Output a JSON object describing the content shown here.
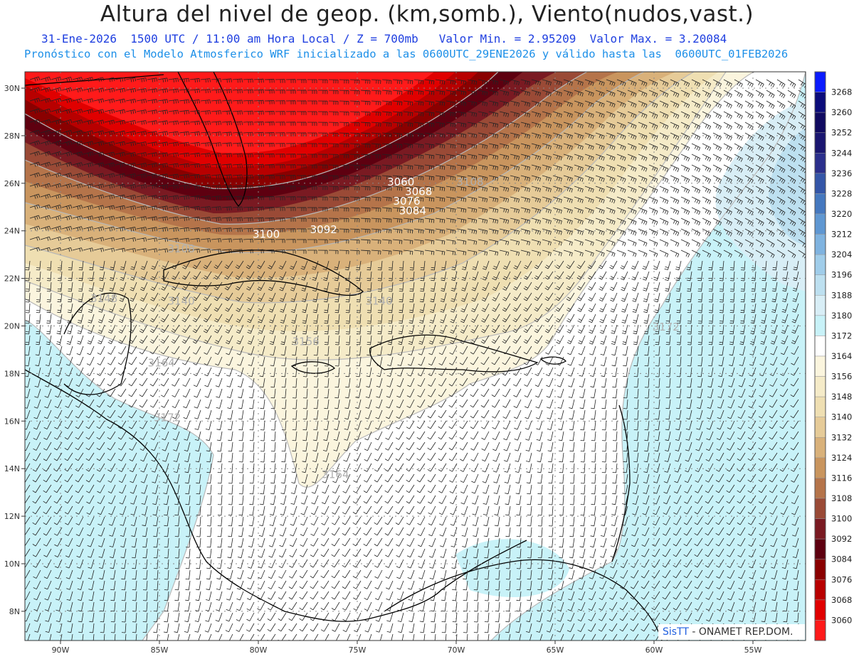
{
  "title": "Altura del nivel de geop. (km,somb.), Viento(nudos,vast.)",
  "subtitle_1": "31-Ene-2026  1500 UTC / 11:00 am Hora Local / Z = 700mb   Valor Min. = 2.95209  Valor Max. = 3.20084",
  "subtitle_2": "Pronóstico con el Modelo Atmosferico WRF inicializado a las 0600UTC_29ENE2026 y válido hasta las  0600UTC_01FEB2026",
  "credit": {
    "brand": "SisTT",
    "rest": " - ONAMET REP.DOM."
  },
  "axes": {
    "lon_ticks": [
      "90W",
      "85W",
      "80W",
      "75W",
      "70W",
      "65W",
      "60W",
      "55W"
    ],
    "lat_ticks": [
      "30N",
      "28N",
      "26N",
      "24N",
      "22N",
      "20N",
      "18N",
      "16N",
      "14N",
      "12N",
      "10N",
      "8N"
    ]
  },
  "colorbar": {
    "levels": [
      {
        "value": "3268",
        "color": "#0a1bff"
      },
      {
        "value": "3260",
        "color": "#0b0c7a"
      },
      {
        "value": "3252",
        "color": "#100a60"
      },
      {
        "value": "3244",
        "color": "#1a1670"
      },
      {
        "value": "3236",
        "color": "#2b2f8c"
      },
      {
        "value": "3228",
        "color": "#3456a8"
      },
      {
        "value": "3220",
        "color": "#4578bf"
      },
      {
        "value": "3212",
        "color": "#5f97d2"
      },
      {
        "value": "3204",
        "color": "#7fb3e0"
      },
      {
        "value": "3196",
        "color": "#a0cdea"
      },
      {
        "value": "3188",
        "color": "#bde0f0"
      },
      {
        "value": "3180",
        "color": "#d8eef6"
      },
      {
        "value": "3172",
        "color": "#c8f2f8"
      },
      {
        "value": "3164",
        "color": "#ffffff"
      },
      {
        "value": "3156",
        "color": "#fbf5de"
      },
      {
        "value": "3148",
        "color": "#f5ebc8"
      },
      {
        "value": "3140",
        "color": "#efdfb2"
      },
      {
        "value": "3132",
        "color": "#e6cb98"
      },
      {
        "value": "3124",
        "color": "#d9b17a"
      },
      {
        "value": "3116",
        "color": "#c9955e"
      },
      {
        "value": "3108",
        "color": "#b5744a"
      },
      {
        "value": "3100",
        "color": "#9a4a36"
      },
      {
        "value": "3092",
        "color": "#7a1a22"
      },
      {
        "value": "3084",
        "color": "#5e0010"
      },
      {
        "value": "3076",
        "color": "#8a0000"
      },
      {
        "value": "3068",
        "color": "#b80000"
      },
      {
        "value": "3060",
        "color": "#e00000"
      },
      {
        "value": "",
        "color": "#ff1a1a"
      }
    ]
  },
  "contour_labels": [
    {
      "text": "3060",
      "lon": -72.8,
      "lat": 25.9,
      "color": "#ffffff"
    },
    {
      "text": "3068",
      "lon": -71.9,
      "lat": 25.5,
      "color": "#ffffff"
    },
    {
      "text": "3076",
      "lon": -72.5,
      "lat": 25.1,
      "color": "#ffffff"
    },
    {
      "text": "3084",
      "lon": -72.2,
      "lat": 24.7,
      "color": "#ffffff"
    },
    {
      "text": "3092",
      "lon": -76.7,
      "lat": 23.9,
      "color": "#ffffff"
    },
    {
      "text": "3100",
      "lon": -79.6,
      "lat": 23.7,
      "color": "#ffffff"
    },
    {
      "text": "3108",
      "lon": -69.3,
      "lat": 25.9,
      "color": "#b0b0b0"
    },
    {
      "text": "3108",
      "lon": -83.9,
      "lat": 23.1,
      "color": "#b0b0b0"
    },
    {
      "text": "3140",
      "lon": -83.9,
      "lat": 20.9,
      "color": "#b0b0b0"
    },
    {
      "text": "3140",
      "lon": -73.9,
      "lat": 20.9,
      "color": "#b0b0b0"
    },
    {
      "text": "3148",
      "lon": -87.8,
      "lat": 21.0,
      "color": "#b0b0b0"
    },
    {
      "text": "3156",
      "lon": -77.6,
      "lat": 19.2,
      "color": "#b0b0b0"
    },
    {
      "text": "3164",
      "lon": -84.9,
      "lat": 18.3,
      "color": "#b0b0b0"
    },
    {
      "text": "3164",
      "lon": -76.1,
      "lat": 13.6,
      "color": "#b0b0b0"
    },
    {
      "text": "3172",
      "lon": -84.6,
      "lat": 16.0,
      "color": "#b0b0b0"
    },
    {
      "text": "3172",
      "lon": -59.4,
      "lat": 19.8,
      "color": "#b0b0b0"
    }
  ]
}
